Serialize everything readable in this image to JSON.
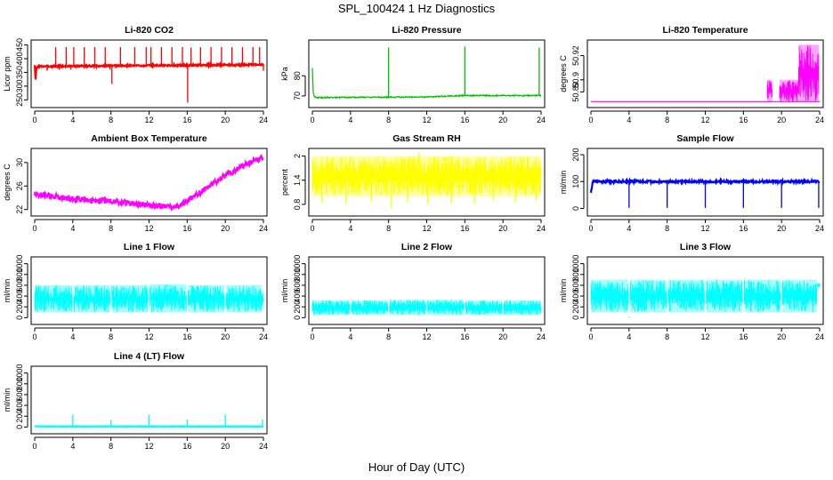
{
  "figure": {
    "title": "SPL_100424  1 Hz Diagnostics",
    "xlabel": "Hour of Day (UTC)"
  },
  "chart_data": [
    {
      "id": "co2",
      "type": "line",
      "title": "Li-820 CO2",
      "ylabel": "Licor ppm",
      "color": "#ff0000",
      "xlim": [
        0,
        24
      ],
      "ylim": [
        235,
        455
      ],
      "yticks": [
        250,
        300,
        350,
        400,
        450
      ],
      "xticks": [
        0,
        4,
        8,
        12,
        16,
        20,
        24
      ],
      "signal": {
        "baseline": 378,
        "noise": 3
      },
      "points": [
        [
          0.0,
          378
        ],
        [
          0.1,
          318
        ],
        [
          0.15,
          360
        ],
        [
          0.3,
          372
        ],
        [
          24.0,
          378
        ]
      ],
      "spikes": [
        {
          "x": 1.3,
          "y": 356
        },
        {
          "x": 2.2,
          "y": 442
        },
        {
          "x": 2.6,
          "y": 360
        },
        {
          "x": 3.3,
          "y": 442
        },
        {
          "x": 3.8,
          "y": 360
        },
        {
          "x": 4.1,
          "y": 442
        },
        {
          "x": 5.2,
          "y": 442
        },
        {
          "x": 6.3,
          "y": 442
        },
        {
          "x": 7.4,
          "y": 442
        },
        {
          "x": 7.9,
          "y": 360
        },
        {
          "x": 8.1,
          "y": 308
        },
        {
          "x": 9.0,
          "y": 442
        },
        {
          "x": 10.5,
          "y": 442
        },
        {
          "x": 11.7,
          "y": 442
        },
        {
          "x": 12.2,
          "y": 442
        },
        {
          "x": 13.3,
          "y": 442
        },
        {
          "x": 14.4,
          "y": 442
        },
        {
          "x": 15.5,
          "y": 442
        },
        {
          "x": 16.05,
          "y": 240
        },
        {
          "x": 16.4,
          "y": 440
        },
        {
          "x": 17.4,
          "y": 442
        },
        {
          "x": 18.5,
          "y": 442
        },
        {
          "x": 19.6,
          "y": 442
        },
        {
          "x": 20.7,
          "y": 442
        },
        {
          "x": 21.8,
          "y": 442
        },
        {
          "x": 22.9,
          "y": 442
        },
        {
          "x": 23.6,
          "y": 442
        },
        {
          "x": 24.0,
          "y": 356
        }
      ]
    },
    {
      "id": "pressure",
      "type": "line",
      "title": "Li-820 Pressure",
      "ylabel": "kPa",
      "color": "#00c000",
      "xlim": [
        0,
        24
      ],
      "ylim": [
        66,
        96
      ],
      "yticks": [
        70,
        80
      ],
      "xticks": [
        0,
        4,
        8,
        12,
        16,
        20,
        24
      ],
      "signal": {
        "baseline": 69,
        "noise": 0.3
      },
      "points": [
        [
          0.0,
          84
        ],
        [
          0.1,
          71
        ],
        [
          0.3,
          69.2
        ],
        [
          12.0,
          69.5
        ],
        [
          16.0,
          70.2
        ],
        [
          24.0,
          70.2
        ]
      ],
      "spikes": [
        {
          "x": 8.0,
          "y": 94
        },
        {
          "x": 16.0,
          "y": 94.5
        },
        {
          "x": 23.8,
          "y": 94
        }
      ]
    },
    {
      "id": "li820-temp",
      "type": "line",
      "title": "Li-820 Temperature",
      "ylabel": "degrees C",
      "color": "#ff00ff",
      "xlim": [
        0,
        24
      ],
      "ylim": [
        50.88,
        50.93
      ],
      "yticks": [
        50.89,
        50.9,
        50.92
      ],
      "xticks": [
        0,
        4,
        8,
        12,
        16,
        20,
        24
      ],
      "signal": {
        "baseline": 50.882,
        "noise": 0
      },
      "points": [
        [
          0.0,
          50.882
        ],
        [
          24.0,
          50.882
        ]
      ],
      "bands": [
        {
          "x0": 18.5,
          "x1": 19.0,
          "y0": 50.882,
          "y1": 50.9
        },
        {
          "x0": 19.8,
          "x1": 21.8,
          "y0": 50.882,
          "y1": 50.9
        },
        {
          "x0": 21.8,
          "x1": 23.9,
          "y0": 50.882,
          "y1": 50.929
        }
      ]
    },
    {
      "id": "ambient-temp",
      "type": "line",
      "title": "Ambient Box Temperature",
      "ylabel": "degrees C",
      "color": "#ff00ff",
      "xlim": [
        0,
        24
      ],
      "ylim": [
        21.5,
        31.8
      ],
      "yticks": [
        22,
        26,
        30
      ],
      "xticks": [
        0,
        4,
        8,
        12,
        16,
        20,
        24
      ],
      "signal": {
        "baseline": 0,
        "noise": 0.45
      },
      "points": [
        [
          0,
          24.6
        ],
        [
          2,
          24.3
        ],
        [
          4,
          23.8
        ],
        [
          6,
          23.6
        ],
        [
          8,
          23.4
        ],
        [
          10,
          23.1
        ],
        [
          12,
          22.8
        ],
        [
          14,
          22.4
        ],
        [
          15,
          22.5
        ],
        [
          16,
          23.4
        ],
        [
          18,
          25.6
        ],
        [
          20,
          27.8
        ],
        [
          22,
          29.6
        ],
        [
          24,
          31.0
        ]
      ]
    },
    {
      "id": "gas-rh",
      "type": "line",
      "title": "Gas Stream RH",
      "ylabel": "percent",
      "color": "#ffff00",
      "xlim": [
        0,
        24
      ],
      "ylim": [
        0.6,
        2.1
      ],
      "yticks": [
        0.8,
        1.4,
        2.0
      ],
      "xticks": [
        0,
        4,
        8,
        12,
        16,
        20,
        24
      ],
      "signal": {
        "baseline": 1.4,
        "noise": 0
      },
      "points": [
        [
          0,
          1.4
        ],
        [
          24,
          1.4
        ]
      ],
      "bands": [
        {
          "x0": 0.0,
          "x1": 24.0,
          "y0": 1.0,
          "y1": 2.0
        }
      ],
      "spikes": [
        {
          "x": 1.0,
          "y": 0.85
        },
        {
          "x": 3.5,
          "y": 0.8
        },
        {
          "x": 6.2,
          "y": 0.85
        },
        {
          "x": 8.3,
          "y": 0.7
        },
        {
          "x": 10.0,
          "y": 0.85
        },
        {
          "x": 12.1,
          "y": 0.8
        },
        {
          "x": 14.6,
          "y": 0.85
        },
        {
          "x": 17.0,
          "y": 0.8
        },
        {
          "x": 19.0,
          "y": 0.9
        },
        {
          "x": 21.3,
          "y": 0.85
        },
        {
          "x": 23.5,
          "y": 0.9
        },
        {
          "x": 11.2,
          "y": 2.08
        }
      ]
    },
    {
      "id": "sample-flow",
      "type": "line",
      "title": "Sample Flow",
      "ylabel": "ml/min",
      "color": "#0000ff",
      "xlim": [
        0,
        24
      ],
      "ylim": [
        -15,
        210
      ],
      "yticks": [
        0,
        100,
        200
      ],
      "xticks": [
        0,
        4,
        8,
        12,
        16,
        20,
        24
      ],
      "signal": {
        "baseline": 102,
        "noise": 4
      },
      "points": [
        [
          0.0,
          60
        ],
        [
          0.2,
          100
        ],
        [
          24.0,
          100
        ]
      ],
      "spikes": [
        {
          "x": 4.0,
          "y": 2
        },
        {
          "x": 8.0,
          "y": 2
        },
        {
          "x": 12.0,
          "y": 2
        },
        {
          "x": 16.0,
          "y": 2
        },
        {
          "x": 20.0,
          "y": 2
        },
        {
          "x": 23.9,
          "y": 2
        }
      ]
    },
    {
      "id": "line1-flow",
      "type": "line",
      "title": "Line 1 Flow",
      "ylabel": "ml/min",
      "color": "#00ffff",
      "xlim": [
        0,
        24
      ],
      "ylim": [
        -60,
        1060
      ],
      "yticks": [
        0,
        200,
        400,
        600,
        800,
        1000
      ],
      "xticks": [
        0,
        4,
        8,
        12,
        16,
        20,
        24
      ],
      "signal": {
        "baseline": 0,
        "noise": 0
      },
      "points": [],
      "bands": [
        {
          "x0": 0.0,
          "x1": 3.9,
          "y0": 100,
          "y1": 600
        },
        {
          "x0": 4.1,
          "x1": 7.9,
          "y0": 100,
          "y1": 600
        },
        {
          "x0": 8.1,
          "x1": 11.9,
          "y0": 100,
          "y1": 600
        },
        {
          "x0": 12.1,
          "x1": 15.9,
          "y0": 100,
          "y1": 620
        },
        {
          "x0": 16.1,
          "x1": 19.9,
          "y0": 100,
          "y1": 600
        },
        {
          "x0": 20.1,
          "x1": 23.8,
          "y0": 100,
          "y1": 600
        },
        {
          "x0": 23.8,
          "x1": 24.0,
          "y0": 150,
          "y1": 480
        }
      ]
    },
    {
      "id": "line2-flow",
      "type": "line",
      "title": "Line 2 Flow",
      "ylabel": "ml/min",
      "color": "#00ffff",
      "xlim": [
        0,
        24
      ],
      "ylim": [
        -60,
        1060
      ],
      "yticks": [
        0,
        200,
        400,
        600,
        800,
        1000
      ],
      "xticks": [
        0,
        4,
        8,
        12,
        16,
        20,
        24
      ],
      "signal": {
        "baseline": 0,
        "noise": 0
      },
      "points": [],
      "bands": [
        {
          "x0": 0.0,
          "x1": 3.9,
          "y0": 50,
          "y1": 320
        },
        {
          "x0": 4.1,
          "x1": 7.9,
          "y0": 50,
          "y1": 320
        },
        {
          "x0": 8.1,
          "x1": 11.9,
          "y0": 50,
          "y1": 330
        },
        {
          "x0": 12.1,
          "x1": 15.9,
          "y0": 50,
          "y1": 330
        },
        {
          "x0": 16.1,
          "x1": 19.9,
          "y0": 50,
          "y1": 320
        },
        {
          "x0": 20.1,
          "x1": 24.0,
          "y0": 50,
          "y1": 320
        }
      ]
    },
    {
      "id": "line3-flow",
      "type": "line",
      "title": "Line 3 Flow",
      "ylabel": "ml/min",
      "color": "#00ffff",
      "xlim": [
        0,
        24
      ],
      "ylim": [
        -60,
        1060
      ],
      "yticks": [
        0,
        200,
        400,
        600,
        800,
        1000
      ],
      "xticks": [
        0,
        4,
        8,
        12,
        16,
        20,
        24
      ],
      "signal": {
        "baseline": 0,
        "noise": 0
      },
      "points": [],
      "bands": [
        {
          "x0": 0.0,
          "x1": 3.9,
          "y0": 100,
          "y1": 700
        },
        {
          "x0": 4.1,
          "x1": 7.9,
          "y0": 100,
          "y1": 700
        },
        {
          "x0": 8.1,
          "x1": 11.9,
          "y0": 100,
          "y1": 700
        },
        {
          "x0": 12.1,
          "x1": 15.9,
          "y0": 100,
          "y1": 700
        },
        {
          "x0": 16.1,
          "x1": 19.9,
          "y0": 100,
          "y1": 700
        },
        {
          "x0": 20.1,
          "x1": 23.7,
          "y0": 100,
          "y1": 700
        },
        {
          "x0": 23.7,
          "x1": 24.0,
          "y0": 560,
          "y1": 640
        }
      ],
      "spikes": [
        {
          "x": 4.0,
          "y": 20
        }
      ]
    },
    {
      "id": "line4-flow",
      "type": "line",
      "title": "Line 4 (LT) Flow",
      "ylabel": "ml/min",
      "color": "#00ffff",
      "xlim": [
        0,
        24
      ],
      "ylim": [
        -60,
        1060
      ],
      "yticks": [
        0,
        200,
        400,
        600,
        800,
        1000
      ],
      "xticks": [
        0,
        4,
        8,
        12,
        16,
        20,
        24
      ],
      "signal": {
        "baseline": 10,
        "noise": 4
      },
      "points": [
        [
          0,
          10
        ],
        [
          24,
          10
        ]
      ],
      "spikes": [
        {
          "x": 4.0,
          "y": 230
        },
        {
          "x": 8.0,
          "y": 130
        },
        {
          "x": 12.0,
          "y": 230
        },
        {
          "x": 16.0,
          "y": 140
        },
        {
          "x": 20.0,
          "y": 230
        },
        {
          "x": 23.9,
          "y": 140
        }
      ]
    }
  ]
}
